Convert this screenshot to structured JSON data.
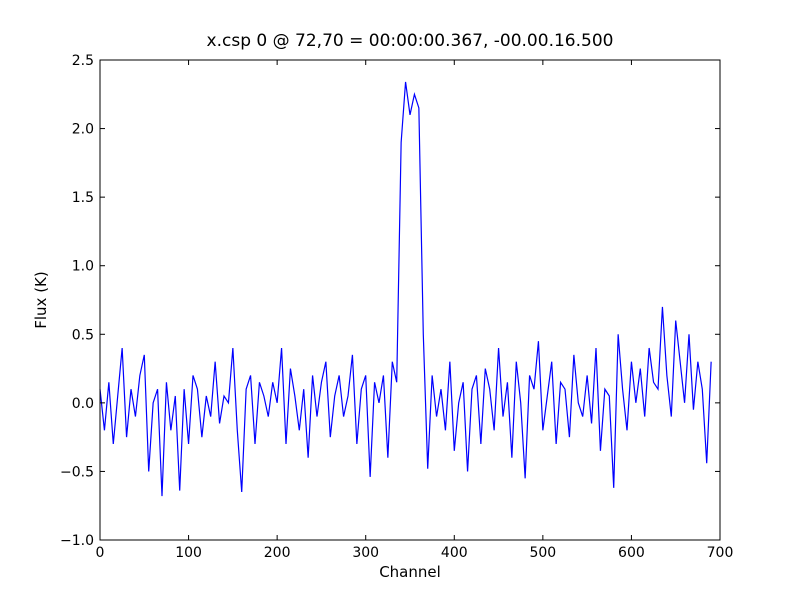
{
  "chart_data": {
    "type": "line",
    "title": "x.csp 0 @ 72,70 = 00:00:00.367, -00.00.16.500",
    "x_label": "Channel",
    "y_label": "Flux (K)",
    "xlim": [
      0,
      700
    ],
    "xticks": [
      0,
      100,
      200,
      300,
      400,
      500,
      600,
      700
    ],
    "ylim": [
      -1.0,
      2.5
    ],
    "yticks": [
      {
        "value": -1.0,
        "label": "−1.0"
      },
      {
        "value": -0.5,
        "label": "−0.5"
      },
      {
        "value": 0,
        "label": "0.0"
      },
      {
        "value": 0.5,
        "label": "0.5"
      },
      {
        "value": 1.0,
        "label": "1.0"
      },
      {
        "value": 1.5,
        "label": "1.5"
      },
      {
        "value": 2.0,
        "label": "2.0"
      },
      {
        "value": 2.5,
        "label": "2.5"
      }
    ],
    "x": [
      0,
      5,
      10,
      15,
      20,
      25,
      30,
      35,
      40,
      45,
      50,
      55,
      60,
      65,
      70,
      75,
      80,
      85,
      90,
      95,
      100,
      105,
      110,
      115,
      120,
      125,
      130,
      135,
      140,
      145,
      150,
      155,
      160,
      165,
      170,
      175,
      180,
      185,
      190,
      195,
      200,
      205,
      210,
      215,
      220,
      225,
      230,
      235,
      240,
      245,
      250,
      255,
      260,
      265,
      270,
      275,
      280,
      285,
      290,
      295,
      300,
      305,
      310,
      315,
      320,
      325,
      330,
      335,
      340,
      345,
      350,
      355,
      360,
      365,
      370,
      375,
      380,
      385,
      390,
      395,
      400,
      405,
      410,
      415,
      420,
      425,
      430,
      435,
      440,
      445,
      450,
      455,
      460,
      465,
      470,
      475,
      480,
      485,
      490,
      495,
      500,
      505,
      510,
      515,
      520,
      525,
      530,
      535,
      540,
      545,
      550,
      555,
      560,
      565,
      570,
      575,
      580,
      585,
      590,
      595,
      600,
      605,
      610,
      615,
      620,
      625,
      630,
      635,
      640,
      645,
      650,
      655,
      660,
      665,
      670,
      675,
      680,
      685,
      690
    ],
    "series": [
      {
        "color": "#0000ff",
        "values": [
          0.1,
          -0.2,
          0.15,
          -0.3,
          0.05,
          0.4,
          -0.25,
          0.1,
          -0.1,
          0.2,
          0.35,
          -0.5,
          0.0,
          0.1,
          -0.68,
          0.15,
          -0.2,
          0.05,
          -0.64,
          0.1,
          -0.3,
          0.2,
          0.1,
          -0.25,
          0.05,
          -0.1,
          0.3,
          -0.15,
          0.05,
          0.0,
          0.4,
          -0.2,
          -0.65,
          0.1,
          0.2,
          -0.3,
          0.15,
          0.05,
          -0.1,
          0.15,
          0.0,
          0.4,
          -0.3,
          0.25,
          0.05,
          -0.2,
          0.1,
          -0.4,
          0.2,
          -0.1,
          0.15,
          0.3,
          -0.25,
          0.05,
          0.2,
          -0.1,
          0.05,
          0.35,
          -0.3,
          0.1,
          0.2,
          -0.54,
          0.15,
          0.0,
          0.2,
          -0.4,
          0.3,
          0.15,
          1.9,
          2.34,
          2.1,
          2.25,
          2.15,
          0.5,
          -0.48,
          0.2,
          -0.1,
          0.1,
          -0.2,
          0.3,
          -0.35,
          0.0,
          0.15,
          -0.5,
          0.1,
          0.2,
          -0.3,
          0.25,
          0.1,
          -0.2,
          0.4,
          -0.1,
          0.15,
          -0.4,
          0.3,
          0.0,
          -0.55,
          0.2,
          0.1,
          0.45,
          -0.2,
          0.05,
          0.3,
          -0.3,
          0.15,
          0.1,
          -0.25,
          0.35,
          0.0,
          -0.1,
          0.2,
          -0.15,
          0.4,
          -0.35,
          0.1,
          0.05,
          -0.62,
          0.5,
          0.1,
          -0.2,
          0.3,
          0.0,
          0.25,
          -0.1,
          0.4,
          0.15,
          0.1,
          0.7,
          0.2,
          -0.1,
          0.6,
          0.3,
          0.0,
          0.5,
          -0.05,
          0.3,
          0.1,
          -0.44,
          0.3
        ]
      }
    ]
  }
}
